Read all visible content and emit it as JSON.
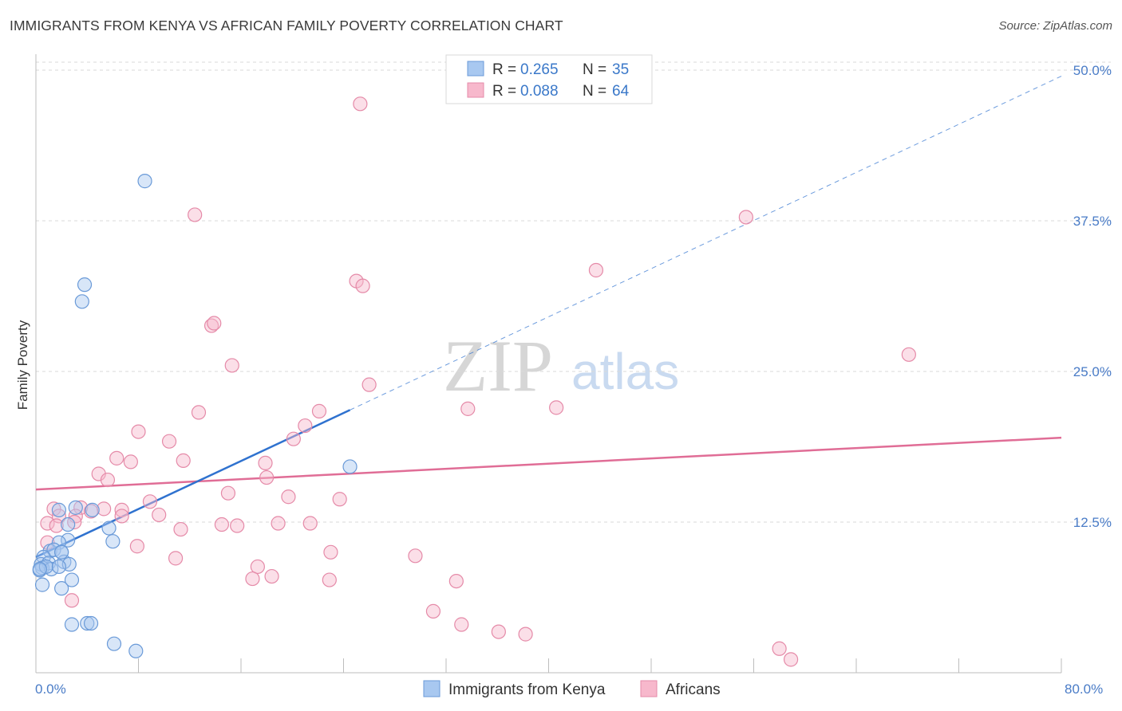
{
  "title": "IMMIGRANTS FROM KENYA VS AFRICAN FAMILY POVERTY CORRELATION CHART",
  "source": "Source: ZipAtlas.com",
  "watermark": {
    "zip": "ZIP",
    "atlas": "atlas"
  },
  "colors": {
    "blue_fill": "#a8c8f0",
    "blue_stroke": "#6a9ad8",
    "blue_line": "#2f72cf",
    "pink_fill": "#f7b8cc",
    "pink_stroke": "#e58aa8",
    "pink_line": "#e06d96"
  },
  "legend": {
    "rows": [
      {
        "r_label": "R =",
        "r_value": "0.265",
        "n_label": "N =",
        "n_value": "35"
      },
      {
        "r_label": "R =",
        "r_value": "0.088",
        "n_label": "N =",
        "n_value": "64"
      }
    ]
  },
  "bottom_legend": {
    "items": [
      "Immigrants from Kenya",
      "Africans"
    ]
  },
  "chart_data": {
    "type": "scatter",
    "title": "IMMIGRANTS FROM KENYA VS AFRICAN FAMILY POVERTY CORRELATION CHART",
    "xlabel": "",
    "ylabel": "Family Poverty",
    "xlim": [
      0,
      80
    ],
    "ylim": [
      0,
      50
    ],
    "x_tick_labels": [
      "0.0%",
      "80.0%"
    ],
    "y_ticks": [
      12.5,
      25.0,
      37.5,
      50.0
    ],
    "y_tick_labels": [
      "12.5%",
      "25.0%",
      "37.5%",
      "50.0%"
    ],
    "grid": true,
    "legend_position": "top-center",
    "series": [
      {
        "name": "Immigrants from Kenya",
        "color": "#a8c8f0",
        "r": 0.265,
        "n": 35,
        "trend": {
          "x": [
            0.0,
            24.5
          ],
          "y": [
            9.6,
            21.8
          ],
          "extended_to": [
            80.0,
            49.5
          ]
        },
        "x": [
          8.5,
          3.8,
          3.6,
          1.8,
          3.1,
          4.4,
          2.5,
          2.5,
          1.8,
          1.1,
          1.4,
          2.0,
          0.6,
          2.2,
          0.4,
          1.0,
          0.5,
          2.6,
          0.3,
          1.2,
          0.8,
          1.8,
          0.3,
          0.5,
          2.8,
          5.7,
          4.0,
          2.0,
          6.0,
          2.8,
          4.3,
          6.1,
          7.8,
          24.5,
          2.0
        ],
        "y": [
          40.8,
          32.2,
          30.8,
          13.5,
          13.7,
          13.5,
          12.3,
          11.0,
          10.8,
          10.1,
          10.2,
          10.0,
          9.6,
          9.2,
          9.0,
          9.1,
          8.7,
          9.0,
          8.5,
          8.6,
          8.8,
          8.8,
          8.6,
          7.3,
          7.7,
          12.0,
          4.1,
          7.0,
          10.9,
          4.0,
          4.1,
          2.4,
          1.8,
          17.1,
          10.0
        ]
      },
      {
        "name": "Africans",
        "color": "#f7b8cc",
        "r": 0.088,
        "n": 64,
        "trend": {
          "x": [
            0.0,
            80.0
          ],
          "y": [
            15.2,
            19.5
          ]
        },
        "x": [
          25.3,
          12.4,
          55.4,
          43.7,
          25.0,
          25.5,
          13.7,
          13.9,
          15.3,
          26.0,
          68.1,
          40.6,
          12.7,
          33.7,
          22.1,
          8.0,
          10.4,
          21.0,
          20.1,
          6.3,
          11.5,
          7.4,
          17.9,
          18.0,
          4.9,
          5.6,
          9.6,
          6.7,
          8.9,
          15.0,
          19.7,
          23.7,
          11.3,
          3.5,
          5.3,
          4.3,
          3.1,
          1.4,
          1.8,
          0.9,
          1.6,
          0.9,
          3.0,
          7.9,
          14.5,
          15.7,
          18.9,
          21.4,
          23.0,
          6.7,
          10.9,
          17.3,
          18.4,
          22.9,
          32.8,
          16.9,
          29.6,
          31.0,
          36.1,
          33.2,
          38.2,
          58.0,
          58.9,
          2.8
        ],
        "y": [
          47.2,
          38.0,
          37.8,
          33.4,
          32.5,
          32.1,
          28.8,
          29.0,
          25.5,
          23.9,
          26.4,
          22.0,
          21.6,
          21.9,
          21.7,
          20.0,
          19.2,
          20.5,
          19.4,
          17.8,
          17.6,
          17.5,
          17.4,
          16.2,
          16.5,
          16.0,
          13.1,
          13.5,
          14.2,
          14.9,
          14.6,
          14.4,
          11.9,
          13.7,
          13.6,
          13.4,
          13.0,
          13.6,
          13.0,
          12.4,
          12.2,
          10.8,
          12.5,
          10.5,
          12.3,
          12.2,
          12.4,
          12.4,
          10.0,
          13.0,
          9.5,
          8.8,
          8.0,
          7.7,
          7.6,
          7.8,
          9.7,
          5.1,
          3.4,
          4.0,
          3.2,
          2.0,
          1.1,
          6.0
        ]
      }
    ]
  },
  "_note_ignore": ""
}
